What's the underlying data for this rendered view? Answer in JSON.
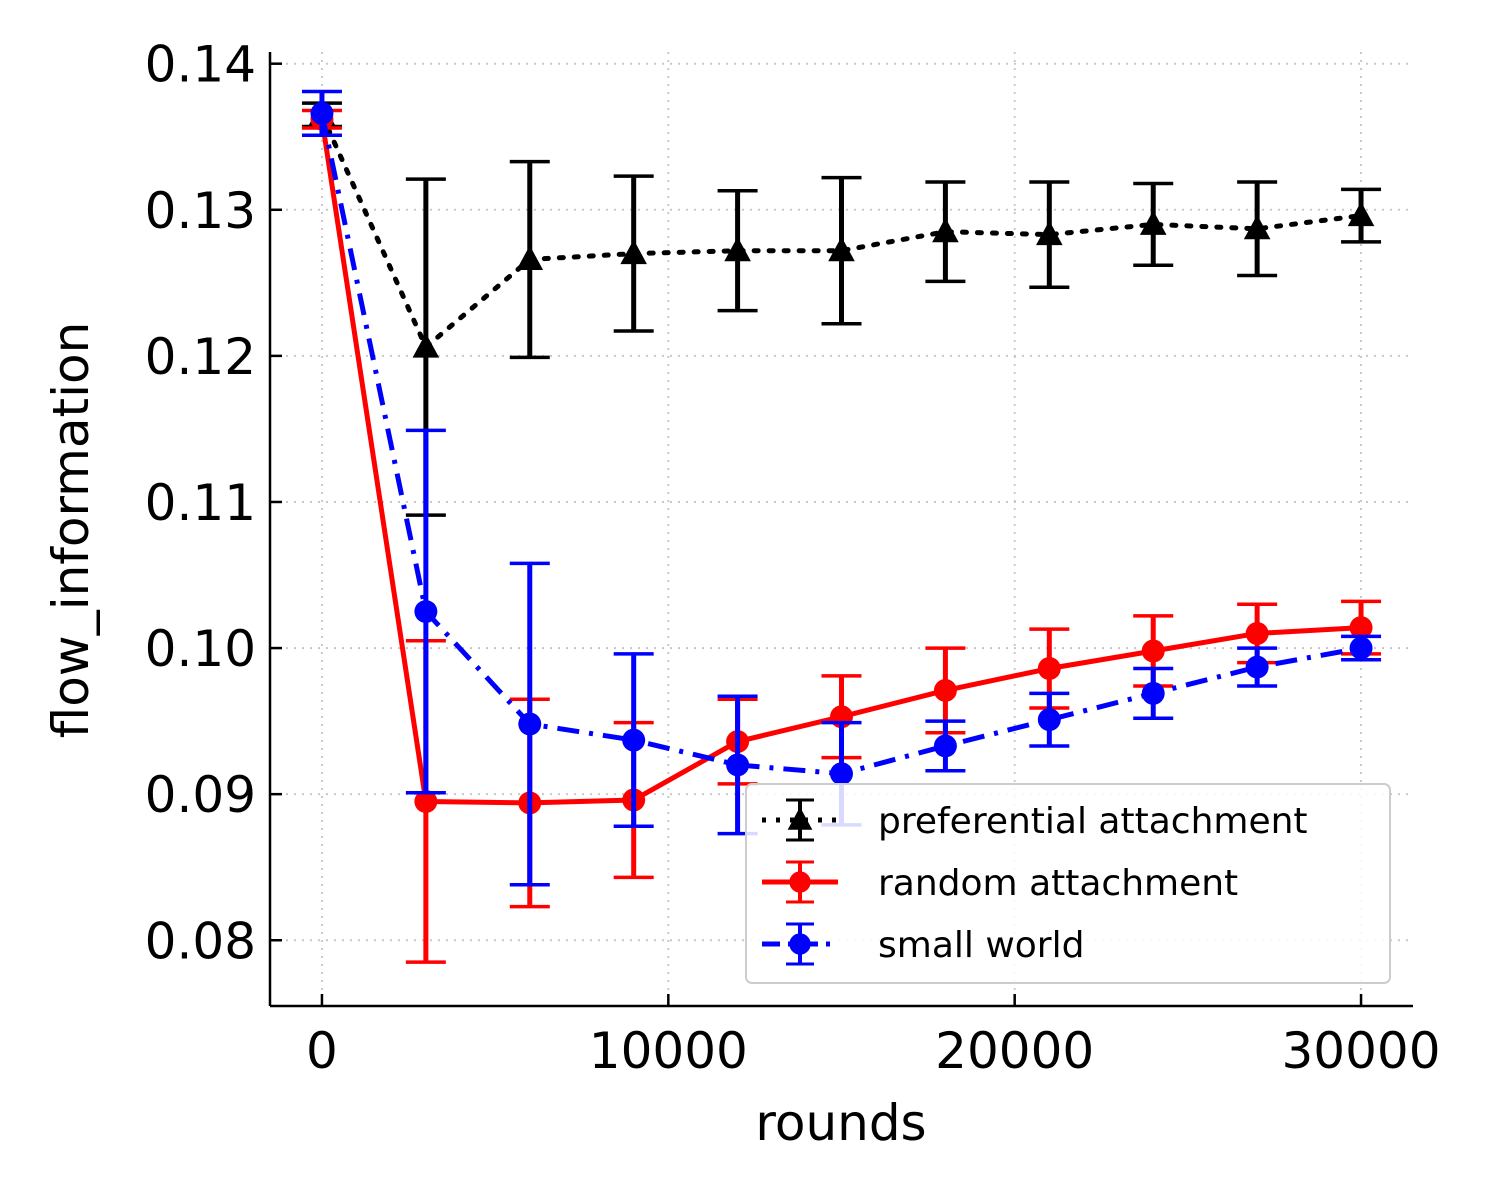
{
  "chart_data": {
    "type": "line",
    "title": "",
    "xlabel": "rounds",
    "ylabel": "flow_information",
    "xlim": [
      -1500,
      31500
    ],
    "ylim": [
      0.0755,
      0.1408
    ],
    "xticks": [
      0,
      10000,
      20000,
      30000
    ],
    "xtick_labels": [
      "0",
      "10000",
      "20000",
      "30000"
    ],
    "yticks": [
      0.08,
      0.09,
      0.1,
      0.11,
      0.12,
      0.13,
      0.14
    ],
    "ytick_labels": [
      "0.08",
      "0.09",
      "0.10",
      "0.11",
      "0.12",
      "0.13",
      "0.14"
    ],
    "grid": true,
    "legend_position": "lower-right",
    "x": [
      0,
      3000,
      6000,
      9000,
      12000,
      15000,
      18000,
      21000,
      24000,
      27000,
      30000
    ],
    "series": [
      {
        "name": "preferential attachment",
        "color": "#000000",
        "linestyle": "dotted",
        "marker": "triangle",
        "values": [
          0.1365,
          0.1206,
          0.1266,
          0.127,
          0.1272,
          0.1272,
          0.1285,
          0.1283,
          0.129,
          0.1287,
          0.1296
        ],
        "error": [
          0.0008,
          0.0115,
          0.0067,
          0.0053,
          0.0041,
          0.005,
          0.0034,
          0.0036,
          0.0028,
          0.0032,
          0.0018
        ]
      },
      {
        "name": "random attachment",
        "color": "#ff0000",
        "linestyle": "solid",
        "marker": "circle",
        "values": [
          0.1362,
          0.0895,
          0.0894,
          0.0896,
          0.0936,
          0.0953,
          0.0971,
          0.0986,
          0.0998,
          0.101,
          0.1014
        ],
        "error": [
          0.0006,
          0.011,
          0.0071,
          0.0053,
          0.0029,
          0.0028,
          0.0029,
          0.0027,
          0.0024,
          0.002,
          0.0018
        ]
      },
      {
        "name": "small world",
        "color": "#0000ff",
        "linestyle": "dashdot",
        "marker": "circle",
        "values": [
          0.1366,
          0.1025,
          0.0948,
          0.0937,
          0.092,
          0.0914,
          0.0933,
          0.0951,
          0.0969,
          0.0987,
          0.1
        ],
        "error": [
          0.0015,
          0.0124,
          0.011,
          0.0059,
          0.0047,
          0.0035,
          0.0017,
          0.0018,
          0.0017,
          0.0013,
          0.0008
        ]
      }
    ]
  }
}
